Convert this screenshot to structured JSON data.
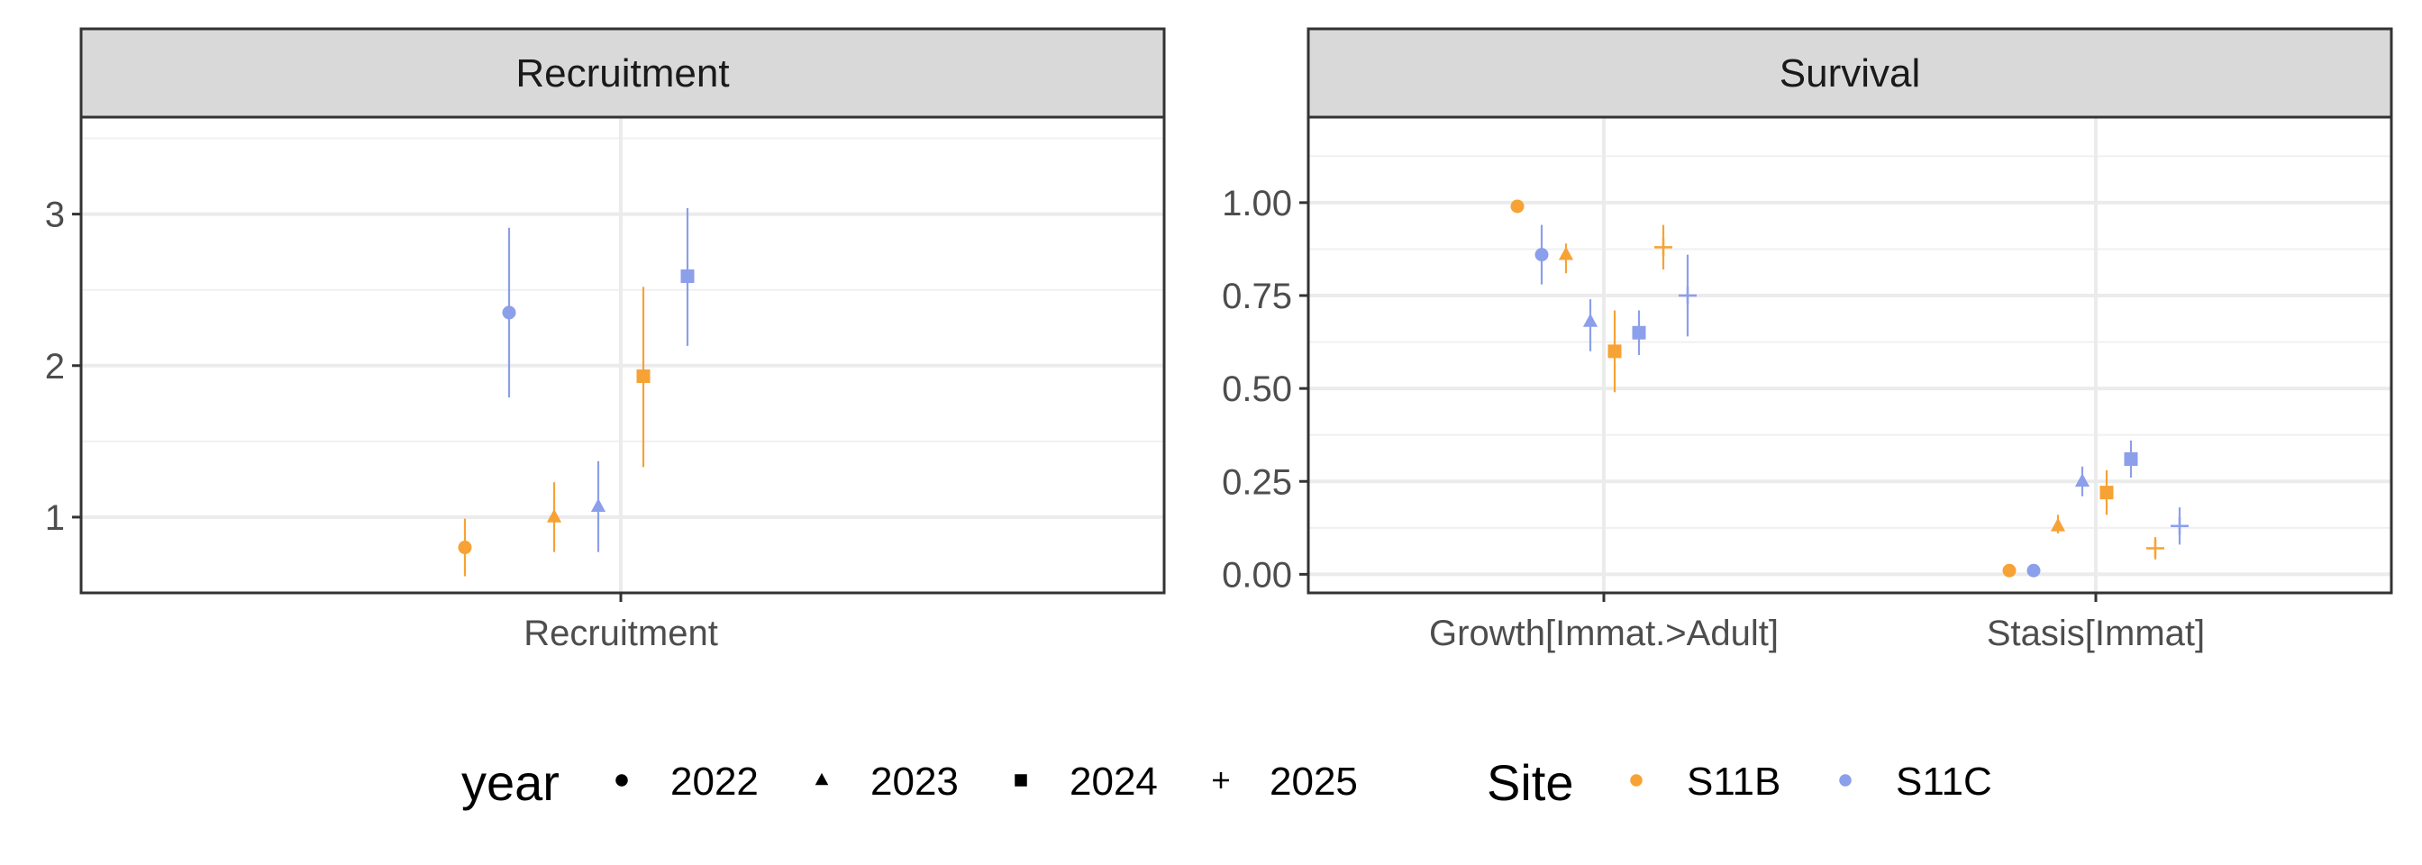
{
  "chart_data": [
    {
      "type": "scatter",
      "title": "Recruitment",
      "categories": [
        "Recruitment"
      ],
      "y_ticks": [
        1,
        2,
        3
      ],
      "ylim": [
        0.5,
        3.64
      ],
      "grid": true,
      "series": [
        {
          "site": "S11B",
          "year": "2022",
          "category": "Recruitment",
          "y": 0.8,
          "lo": 0.61,
          "hi": 0.99
        },
        {
          "site": "S11B",
          "year": "2023",
          "category": "Recruitment",
          "y": 1.0,
          "lo": 0.77,
          "hi": 1.23
        },
        {
          "site": "S11C",
          "year": "2023",
          "category": "Recruitment",
          "y": 1.07,
          "lo": 0.77,
          "hi": 1.37
        },
        {
          "site": "S11C",
          "year": "2022",
          "category": "Recruitment",
          "y": 2.35,
          "lo": 1.79,
          "hi": 2.91
        },
        {
          "site": "S11B",
          "year": "2024",
          "category": "Recruitment",
          "y": 1.93,
          "lo": 1.33,
          "hi": 2.52
        },
        {
          "site": "S11C",
          "year": "2024",
          "category": "Recruitment",
          "y": 2.59,
          "lo": 2.13,
          "hi": 3.04
        }
      ]
    },
    {
      "type": "scatter",
      "title": "Survival",
      "categories": [
        "Growth[Immat.>Adult]",
        "Stasis[Immat]"
      ],
      "y_ticks": [
        "0.00",
        "0.25",
        "0.50",
        "0.75",
        "1.00"
      ],
      "ylim": [
        -0.05,
        1.23
      ],
      "grid": true,
      "series": [
        {
          "site": "S11B",
          "year": "2022",
          "category": "Growth[Immat.>Adult]",
          "y": 0.99,
          "lo": 0.99,
          "hi": 0.99
        },
        {
          "site": "S11C",
          "year": "2022",
          "category": "Growth[Immat.>Adult]",
          "y": 0.86,
          "lo": 0.78,
          "hi": 0.94
        },
        {
          "site": "S11B",
          "year": "2023",
          "category": "Growth[Immat.>Adult]",
          "y": 0.86,
          "lo": 0.81,
          "hi": 0.89
        },
        {
          "site": "S11C",
          "year": "2023",
          "category": "Growth[Immat.>Adult]",
          "y": 0.68,
          "lo": 0.6,
          "hi": 0.74
        },
        {
          "site": "S11B",
          "year": "2024",
          "category": "Growth[Immat.>Adult]",
          "y": 0.6,
          "lo": 0.49,
          "hi": 0.71
        },
        {
          "site": "S11C",
          "year": "2024",
          "category": "Growth[Immat.>Adult]",
          "y": 0.65,
          "lo": 0.59,
          "hi": 0.71
        },
        {
          "site": "S11B",
          "year": "2025",
          "category": "Growth[Immat.>Adult]",
          "y": 0.88,
          "lo": 0.82,
          "hi": 0.94
        },
        {
          "site": "S11C",
          "year": "2025",
          "category": "Growth[Immat.>Adult]",
          "y": 0.75,
          "lo": 0.64,
          "hi": 0.86
        },
        {
          "site": "S11B",
          "year": "2022",
          "category": "Stasis[Immat]",
          "y": 0.01,
          "lo": 0.01,
          "hi": 0.01
        },
        {
          "site": "S11C",
          "year": "2022",
          "category": "Stasis[Immat]",
          "y": 0.01,
          "lo": 0.01,
          "hi": 0.01
        },
        {
          "site": "S11B",
          "year": "2023",
          "category": "Stasis[Immat]",
          "y": 0.13,
          "lo": 0.11,
          "hi": 0.16
        },
        {
          "site": "S11C",
          "year": "2023",
          "category": "Stasis[Immat]",
          "y": 0.25,
          "lo": 0.21,
          "hi": 0.29
        },
        {
          "site": "S11B",
          "year": "2024",
          "category": "Stasis[Immat]",
          "y": 0.22,
          "lo": 0.16,
          "hi": 0.28
        },
        {
          "site": "S11C",
          "year": "2024",
          "category": "Stasis[Immat]",
          "y": 0.31,
          "lo": 0.26,
          "hi": 0.36
        },
        {
          "site": "S11B",
          "year": "2025",
          "category": "Stasis[Immat]",
          "y": 0.07,
          "lo": 0.04,
          "hi": 0.1
        },
        {
          "site": "S11C",
          "year": "2025",
          "category": "Stasis[Immat]",
          "y": 0.13,
          "lo": 0.08,
          "hi": 0.18
        }
      ]
    }
  ],
  "legend": {
    "year_title": "year",
    "years": [
      "2022",
      "2023",
      "2024",
      "2025"
    ],
    "site_title": "Site",
    "sites": [
      "S11B",
      "S11C"
    ],
    "year_shapes": {
      "2022": "circle",
      "2023": "triangle",
      "2024": "square",
      "2025": "plus"
    },
    "site_colors": {
      "S11B": "#F7A234",
      "S11C": "#8B9FEA"
    },
    "placement": "bottom"
  }
}
